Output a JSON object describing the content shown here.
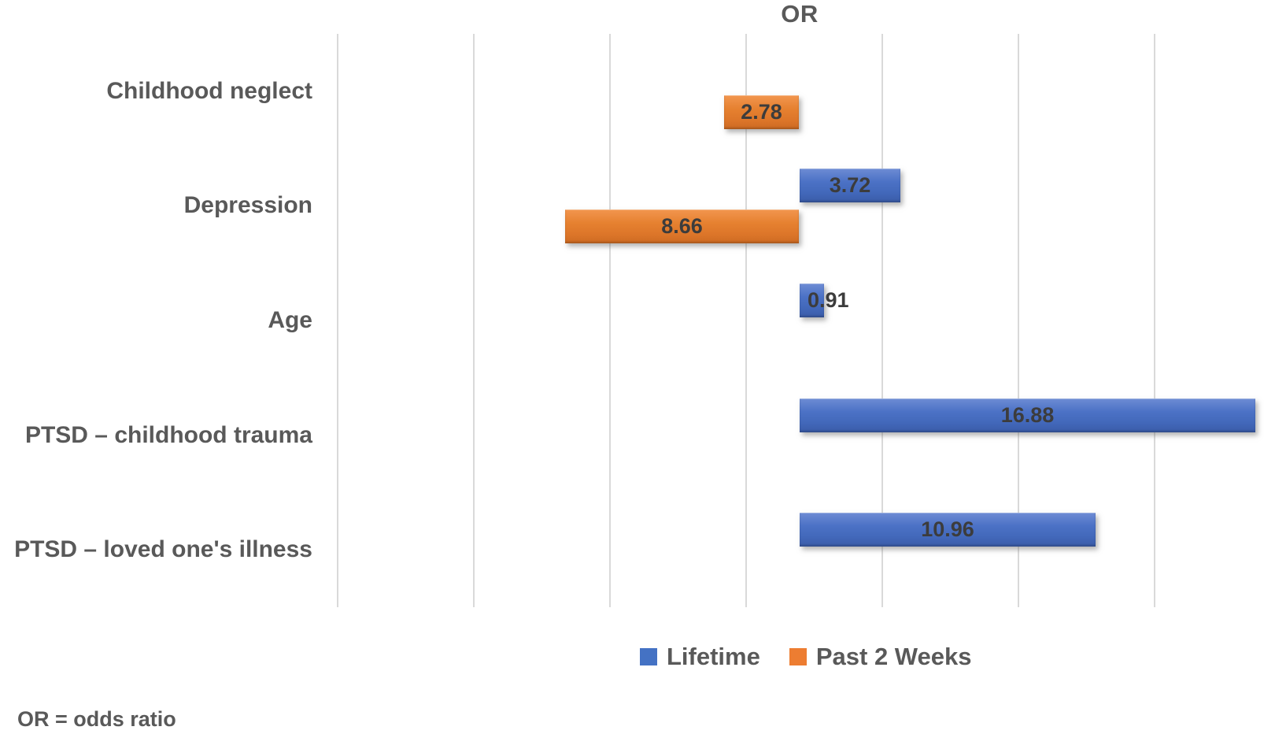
{
  "chart_data": {
    "type": "bar",
    "orientation": "horizontal",
    "title": "OR",
    "categories": [
      "Childhood neglect",
      "Depression",
      "Age",
      "PTSD – childhood trauma",
      "PTSD – loved one's illness"
    ],
    "series": [
      {
        "name": "Lifetime",
        "color": "#4472C4",
        "bar_direction": "right",
        "values": [
          null,
          3.72,
          0.91,
          16.88,
          10.96
        ]
      },
      {
        "name": "Past 2 Weeks",
        "color": "#ED7D31",
        "bar_direction": "left",
        "values": [
          2.78,
          8.66,
          null,
          null,
          null
        ]
      }
    ],
    "data_labels_visible": true,
    "axes": {
      "value_axis_title": "OR",
      "value_tick_labels_visible": false,
      "gridlines": "vertical",
      "gridline_color": "#d9d9d9",
      "axis_line_style": "white with soft gray shadow"
    },
    "legend_position": "bottom"
  },
  "legend": {
    "items": [
      {
        "label": "Lifetime",
        "color": "#4472C4"
      },
      {
        "label": "Past 2 Weeks",
        "color": "#ED7D31"
      }
    ]
  },
  "footnote": {
    "text": "OR = odds ratio"
  },
  "colors": {
    "background": "#ffffff",
    "gridline": "#d9d9d9",
    "heading_text": "#595959",
    "data_label_text": "#3c3c3c",
    "lifetime_bar": "#4472C4",
    "past2weeks_bar": "#ED7D31"
  }
}
